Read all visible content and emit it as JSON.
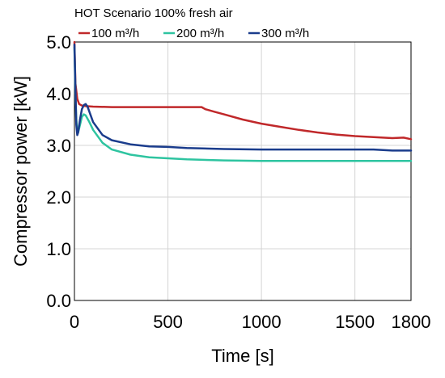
{
  "chart_data": {
    "type": "line",
    "title": "HOT Scenario 100% fresh air",
    "xlabel": "Time [s]",
    "ylabel": "Compressor power [kW]",
    "xlim": [
      0,
      1800
    ],
    "ylim": [
      0,
      5
    ],
    "x_ticks": [
      0,
      500,
      1000,
      1500,
      1800
    ],
    "y_ticks": [
      0.0,
      1.0,
      2.0,
      3.0,
      4.0,
      5.0
    ],
    "x_tick_labels": [
      "0",
      "500",
      "1000",
      "1500",
      "1800"
    ],
    "y_tick_labels": [
      "0.0",
      "1.0",
      "2.0",
      "3.0",
      "4.0",
      "5.0"
    ],
    "grid": true,
    "legend_position": "top",
    "series": [
      {
        "name": "100 m³/h",
        "color": "#c0282a",
        "x": [
          0,
          5,
          15,
          25,
          40,
          60,
          100,
          200,
          300,
          400,
          500,
          600,
          680,
          700,
          750,
          800,
          900,
          1000,
          1100,
          1200,
          1300,
          1400,
          1500,
          1600,
          1700,
          1760,
          1800
        ],
        "y": [
          5.0,
          4.2,
          3.9,
          3.8,
          3.77,
          3.76,
          3.75,
          3.74,
          3.74,
          3.74,
          3.74,
          3.74,
          3.74,
          3.7,
          3.65,
          3.6,
          3.5,
          3.42,
          3.36,
          3.3,
          3.25,
          3.21,
          3.18,
          3.16,
          3.14,
          3.15,
          3.12
        ]
      },
      {
        "name": "200 m³/h",
        "color": "#2ec4a0",
        "x": [
          0,
          5,
          10,
          15,
          20,
          30,
          40,
          50,
          60,
          80,
          100,
          150,
          200,
          300,
          400,
          500,
          600,
          800,
          1000,
          1200,
          1400,
          1600,
          1800
        ],
        "y": [
          4.9,
          4.0,
          3.5,
          3.3,
          3.25,
          3.4,
          3.55,
          3.6,
          3.58,
          3.45,
          3.3,
          3.05,
          2.92,
          2.82,
          2.77,
          2.75,
          2.73,
          2.71,
          2.7,
          2.7,
          2.7,
          2.7,
          2.7
        ]
      },
      {
        "name": "300 m³/h",
        "color": "#1a3c8c",
        "x": [
          0,
          5,
          10,
          15,
          20,
          30,
          40,
          50,
          60,
          70,
          80,
          100,
          150,
          200,
          300,
          400,
          500,
          600,
          800,
          1000,
          1200,
          1400,
          1600,
          1700,
          1800
        ],
        "y": [
          4.95,
          4.1,
          3.4,
          3.2,
          3.25,
          3.5,
          3.7,
          3.78,
          3.8,
          3.75,
          3.65,
          3.45,
          3.2,
          3.1,
          3.02,
          2.98,
          2.97,
          2.95,
          2.93,
          2.92,
          2.92,
          2.92,
          2.92,
          2.9,
          2.9
        ]
      }
    ]
  }
}
